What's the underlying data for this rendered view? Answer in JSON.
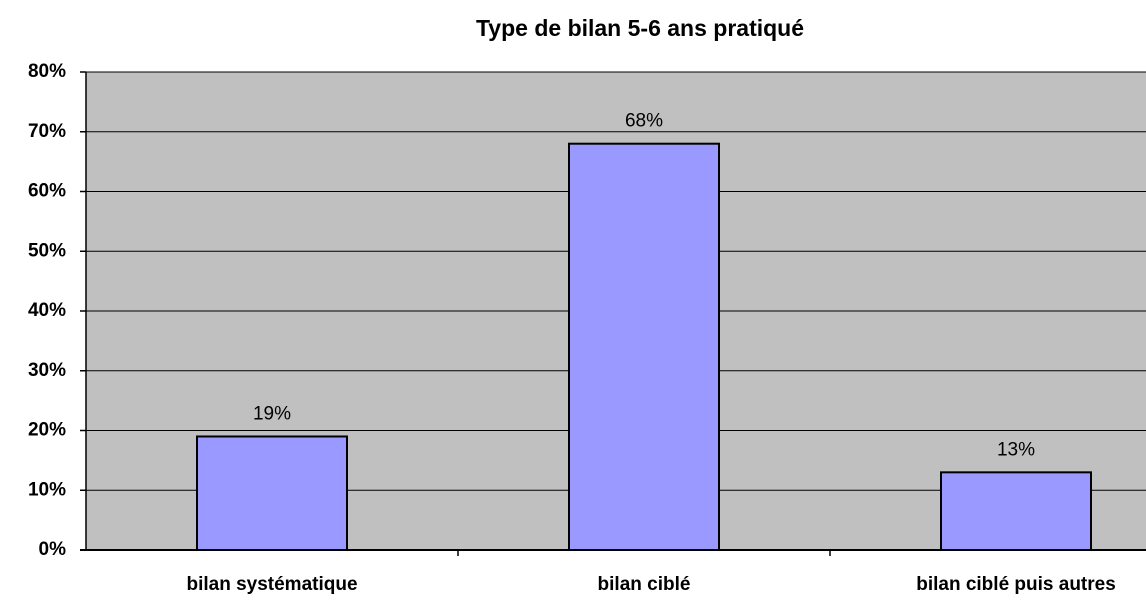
{
  "chart_data": {
    "type": "bar",
    "title": "Type de bilan 5-6 ans pratiqué",
    "categories": [
      "bilan systématique",
      "bilan ciblé",
      "bilan ciblé puis autres"
    ],
    "values": [
      19,
      68,
      13
    ],
    "value_labels": [
      "19%",
      "68%",
      "13%"
    ],
    "color": "#9999ff",
    "ylim": [
      0,
      80
    ],
    "yticks": [
      {
        "value": 0,
        "label": "0%"
      },
      {
        "value": 10,
        "label": "10%"
      },
      {
        "value": 20,
        "label": "20%"
      },
      {
        "value": 30,
        "label": "30%"
      },
      {
        "value": 40,
        "label": "40%"
      },
      {
        "value": 50,
        "label": "50%"
      },
      {
        "value": 60,
        "label": "60%"
      },
      {
        "value": 70,
        "label": "70%"
      },
      {
        "value": 80,
        "label": "80%"
      }
    ],
    "grid": true
  }
}
